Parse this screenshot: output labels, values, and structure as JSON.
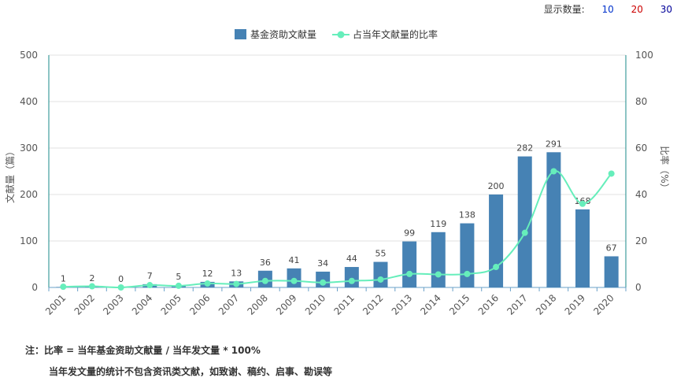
{
  "display_count": {
    "label": "显示数量:",
    "options": [
      "10",
      "20",
      "30"
    ]
  },
  "notes": {
    "line1": "注：比率 = 当年基金资助文献量 / 当年发文量 * 100%",
    "line2": "当年发文量的统计不包含资讯类文献，如致谢、稿约、启事、勘误等"
  },
  "chart_data": {
    "type": "bar",
    "categories": [
      "2001",
      "2002",
      "2003",
      "2004",
      "2005",
      "2006",
      "2007",
      "2008",
      "2009",
      "2010",
      "2011",
      "2012",
      "2013",
      "2014",
      "2015",
      "2016",
      "2017",
      "2018",
      "2019",
      "2020"
    ],
    "series": [
      {
        "name": "基金资助文献量",
        "type": "bar",
        "axis": "left",
        "color": "#4682B4",
        "values": [
          1,
          2,
          0,
          7,
          5,
          12,
          13,
          36,
          41,
          34,
          44,
          55,
          99,
          119,
          138,
          200,
          282,
          291,
          168,
          67
        ]
      },
      {
        "name": "占当年文献量的比率",
        "type": "line",
        "axis": "right",
        "color": "#66EEBB",
        "values": [
          0.3,
          0.5,
          0,
          1,
          0.7,
          1.7,
          1.5,
          2.8,
          2.8,
          2.1,
          2.8,
          3.4,
          5.8,
          5.6,
          5.8,
          8.8,
          23.5,
          50,
          36,
          49
        ]
      }
    ],
    "ylabel": "文献量（篇）",
    "y2label": "比率（%）",
    "ylim": [
      0,
      500
    ],
    "y2lim": [
      0,
      100
    ],
    "yticks": [
      0,
      100,
      200,
      300,
      400,
      500
    ],
    "y2ticks": [
      0,
      20,
      40,
      60,
      80,
      100
    ],
    "grid": true,
    "legend": "top-center",
    "data_labels": true
  }
}
